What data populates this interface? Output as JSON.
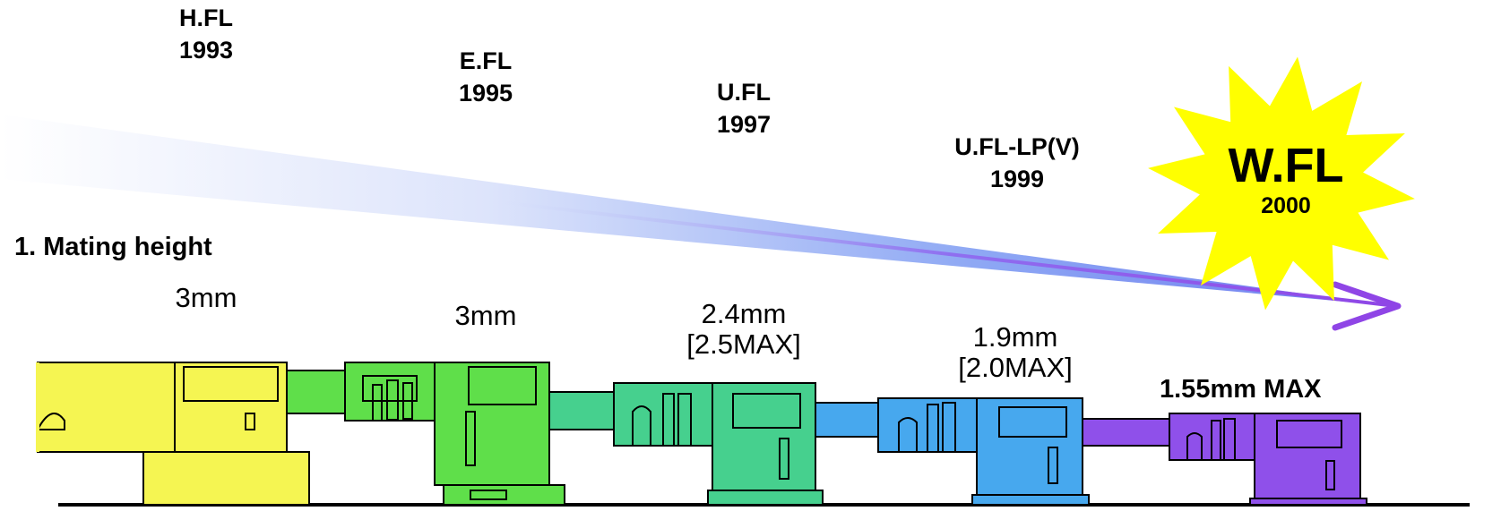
{
  "section_title": "1. Mating height",
  "generations": [
    {
      "name": "H.FL",
      "year": "1993",
      "height": "3mm",
      "max": "",
      "color": "#f5f552"
    },
    {
      "name": "E.FL",
      "year": "1995",
      "height": "3mm",
      "max": "",
      "color": "#5fdf4a"
    },
    {
      "name": "U.FL",
      "year": "1997",
      "height": "2.4mm",
      "max": "[2.5MAX]",
      "color": "#46d08e"
    },
    {
      "name": "U.FL-LP(V)",
      "year": "1999",
      "height": "1.9mm",
      "max": "[2.0MAX]",
      "color": "#47a8ee"
    },
    {
      "name": "W.FL",
      "year": "2000",
      "height": "1.55mm MAX",
      "max": "",
      "color": "#8f50ea"
    }
  ],
  "colors": {
    "burst": "#ffff00",
    "arrow_start": "#ffffff",
    "arrow_end": "#8f45e6",
    "outline": "#000000"
  }
}
